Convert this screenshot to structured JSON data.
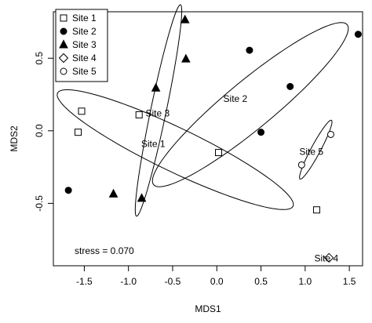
{
  "chart_data": {
    "type": "scatter",
    "xlabel": "MDS1",
    "ylabel": "MDS2",
    "xlim": [
      -1.85,
      1.65
    ],
    "ylim": [
      -0.93,
      0.82
    ],
    "x_ticks": [
      {
        "value": -1.5,
        "label": "-1.5"
      },
      {
        "value": -1.0,
        "label": "-1.0"
      },
      {
        "value": -0.5,
        "label": "-0.5"
      },
      {
        "value": 0.0,
        "label": "0.0"
      },
      {
        "value": 0.5,
        "label": "0.5"
      },
      {
        "value": 1.0,
        "label": "1.0"
      },
      {
        "value": 1.5,
        "label": "1.5"
      }
    ],
    "y_ticks": [
      {
        "value": -0.5,
        "label": "-0.5"
      },
      {
        "value": 0.0,
        "label": "0.0"
      },
      {
        "value": 0.5,
        "label": "0.5"
      }
    ],
    "grid": false,
    "legend_position": "top-left",
    "series": [
      {
        "name": "Site 1",
        "marker": "square-open",
        "x": [
          -1.53,
          -1.57,
          -0.88,
          0.02,
          1.13
        ],
        "y": [
          0.135,
          -0.01,
          0.11,
          -0.15,
          -0.545
        ]
      },
      {
        "name": "Site 2",
        "marker": "circle-filled",
        "x": [
          -1.68,
          0.37,
          0.5,
          0.83,
          1.6
        ],
        "y": [
          -0.41,
          0.555,
          -0.01,
          0.305,
          0.665
        ]
      },
      {
        "name": "Site 3",
        "marker": "triangle-filled",
        "x": [
          -1.17,
          -0.85,
          -0.69,
          -0.36,
          -0.35
        ],
        "y": [
          -0.435,
          -0.465,
          0.295,
          0.765,
          0.495
        ]
      },
      {
        "name": "Site 4",
        "marker": "diamond-open",
        "x": [
          1.27
        ],
        "y": [
          -0.875
        ]
      },
      {
        "name": "Site 5",
        "marker": "circle-open",
        "x": [
          0.96,
          1.29
        ],
        "y": [
          -0.235,
          -0.025
        ]
      }
    ],
    "ellipses": [
      {
        "site": "Site 1",
        "cx": -0.47,
        "cy": -0.13,
        "rx": 1.39,
        "ry": 0.16,
        "angle_deg": -16
      },
      {
        "site": "Site 2",
        "cx": 0.38,
        "cy": 0.18,
        "rx": 1.23,
        "ry": 0.19,
        "angle_deg": 26
      },
      {
        "site": "Site 3",
        "cx": -0.66,
        "cy": 0.14,
        "rx": 0.77,
        "ry": 0.085,
        "angle_deg": 71
      },
      {
        "site": "Site 5",
        "cx": 1.12,
        "cy": -0.13,
        "rx": 0.27,
        "ry": 0.045,
        "angle_deg": 48
      }
    ],
    "ellipse_labels": [
      {
        "text": "Site 3",
        "x": -0.67,
        "y": 0.12
      },
      {
        "text": "Site 2",
        "x": 0.21,
        "y": 0.22
      },
      {
        "text": "Site 1",
        "x": -0.72,
        "y": -0.09
      },
      {
        "text": "Site 5",
        "x": 1.07,
        "y": -0.145
      },
      {
        "text": "Site 4",
        "x": 1.24,
        "y": -0.88
      }
    ],
    "annotation": "stress = 0.070"
  },
  "colors": {
    "markers": "#000000",
    "lines": "#000000",
    "background": "#ffffff"
  }
}
